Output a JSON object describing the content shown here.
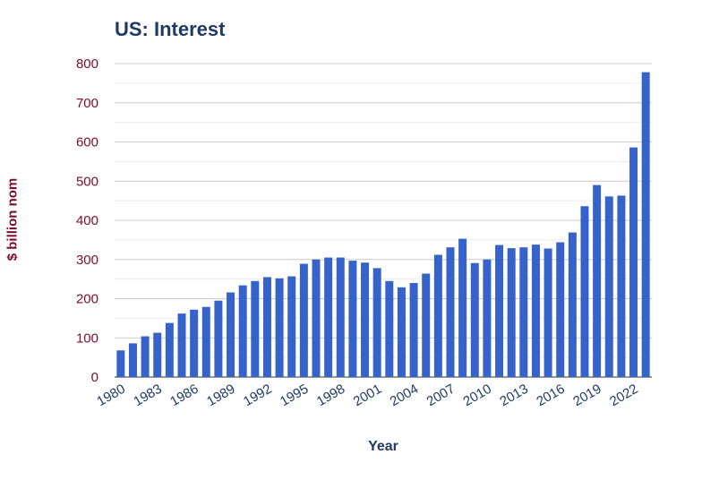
{
  "chart_data": {
    "type": "bar",
    "title": "US: Interest",
    "xlabel": "Year",
    "ylabel": "$ billion nom",
    "ylim": [
      0,
      800
    ],
    "yticks": [
      0,
      100,
      200,
      300,
      400,
      500,
      600,
      700,
      800
    ],
    "xtick_labels": [
      "1980",
      "1983",
      "1986",
      "1989",
      "1992",
      "1995",
      "1998",
      "2001",
      "2004",
      "2007",
      "2010",
      "2013",
      "2016",
      "2019",
      "2022"
    ],
    "grid": true,
    "legend": "none",
    "bar_color": "#3563c9",
    "categories": [
      "1980",
      "1981",
      "1982",
      "1983",
      "1984",
      "1985",
      "1986",
      "1987",
      "1988",
      "1989",
      "1990",
      "1991",
      "1992",
      "1993",
      "1994",
      "1995",
      "1996",
      "1997",
      "1998",
      "1999",
      "2000",
      "2001",
      "2002",
      "2003",
      "2004",
      "2005",
      "2006",
      "2007",
      "2008",
      "2009",
      "2010",
      "2011",
      "2012",
      "2013",
      "2014",
      "2015",
      "2016",
      "2017",
      "2018",
      "2019",
      "2020",
      "2021",
      "2022",
      "2023"
    ],
    "values": [
      68,
      86,
      104,
      113,
      138,
      162,
      172,
      179,
      195,
      216,
      234,
      245,
      255,
      252,
      257,
      289,
      300,
      305,
      305,
      297,
      292,
      278,
      245,
      229,
      240,
      264,
      312,
      331,
      353,
      291,
      300,
      337,
      329,
      331,
      338,
      328,
      344,
      369,
      436,
      490,
      461,
      463,
      586,
      778
    ]
  }
}
